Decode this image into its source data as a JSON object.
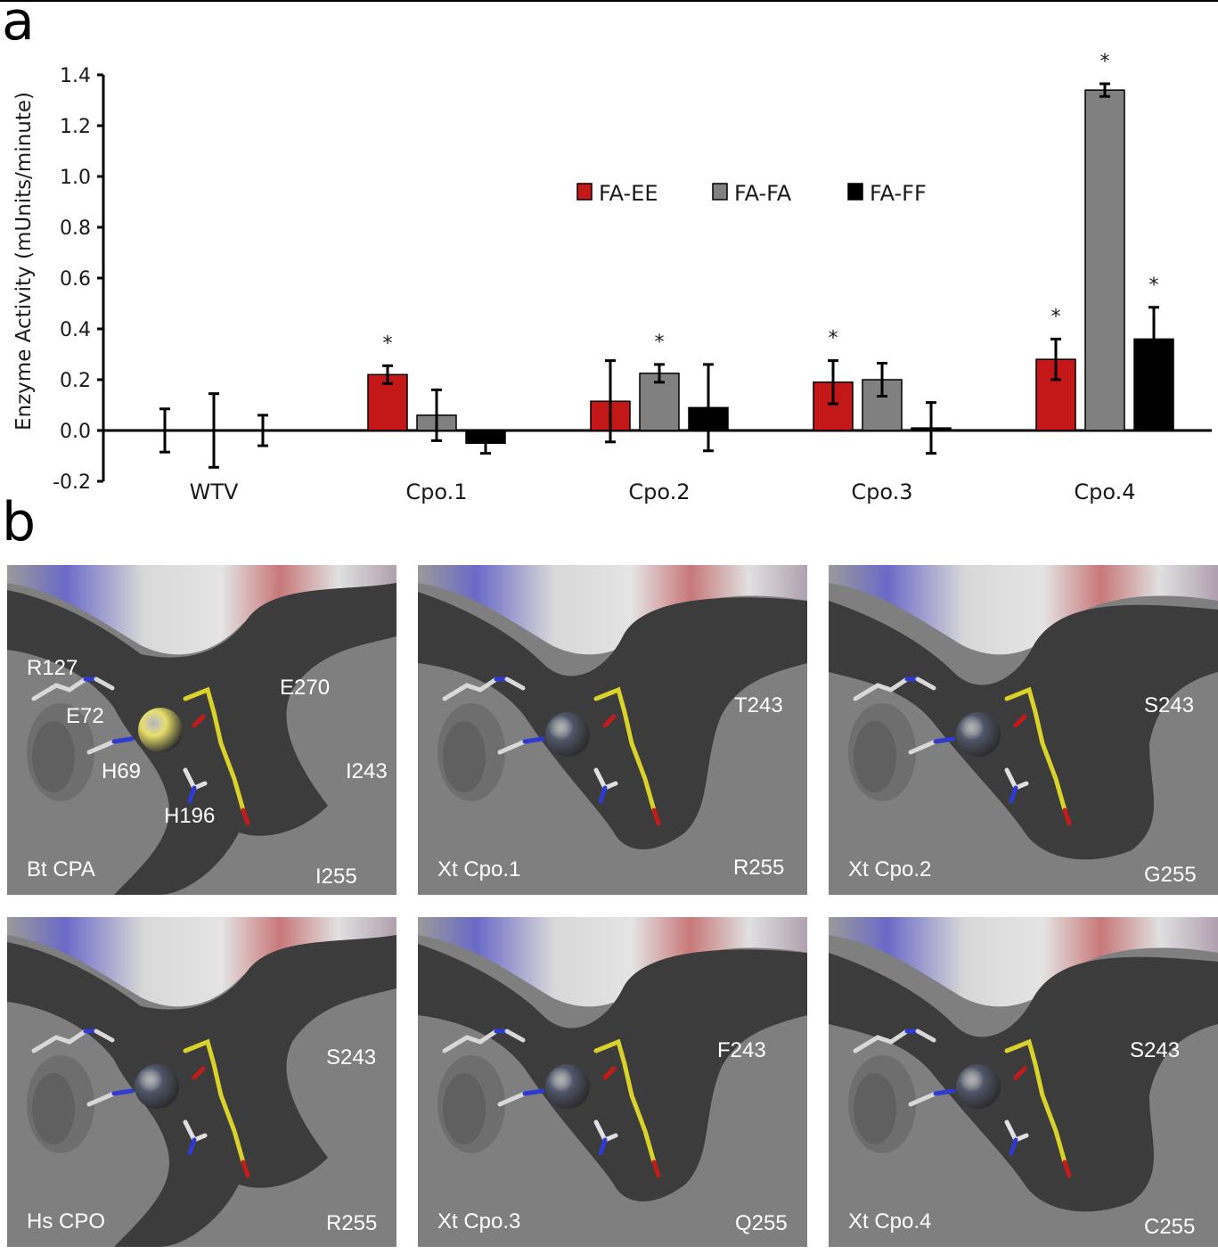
{
  "panel_a_letter": "a",
  "panel_b_letter": "b",
  "chart_data": {
    "type": "bar",
    "ylabel": "Enzyme Activity (mUnits/minute)",
    "xlabel": "",
    "title": "",
    "ylim": [
      -0.2,
      1.4
    ],
    "yticks": [
      "-0.2",
      "0.0",
      "0.2",
      "0.4",
      "0.6",
      "0.8",
      "1.0",
      "1.2",
      "1.4"
    ],
    "categories": [
      "WTV",
      "Cpo.1",
      "Cpo.2",
      "Cpo.3",
      "Cpo.4"
    ],
    "series": [
      {
        "name": "FA-EE",
        "color": "#c41718",
        "values": [
          0.0,
          0.22,
          0.115,
          0.19,
          0.28
        ],
        "errors": [
          0.085,
          0.035,
          0.16,
          0.085,
          0.08
        ],
        "significant": [
          false,
          true,
          false,
          true,
          true
        ]
      },
      {
        "name": "FA-FA",
        "color": "#808080",
        "values": [
          0.0,
          0.06,
          0.225,
          0.2,
          1.34
        ],
        "errors": [
          0.145,
          0.1,
          0.035,
          0.065,
          0.025
        ],
        "significant": [
          false,
          false,
          true,
          false,
          true
        ]
      },
      {
        "name": "FA-FF",
        "color": "#000000",
        "values": [
          0.0,
          -0.05,
          0.09,
          0.01,
          0.36
        ],
        "errors": [
          0.06,
          0.04,
          0.17,
          0.1,
          0.125
        ],
        "significant": [
          false,
          false,
          false,
          false,
          true
        ]
      }
    ],
    "significance_marker": "*",
    "grid": false,
    "legend_position": "top-center"
  },
  "panel_b": {
    "panels": [
      {
        "title": "Bt CPA",
        "labels": [
          "R127",
          "E72",
          "H69",
          "H196",
          "E270",
          "I243",
          "I255"
        ],
        "metal": "yellow"
      },
      {
        "title": "Xt Cpo.1",
        "labels": [
          "T243",
          "R255"
        ],
        "metal": "slate"
      },
      {
        "title": "Xt Cpo.2",
        "labels": [
          "S243",
          "G255"
        ],
        "metal": "slate"
      },
      {
        "title": "Hs CPO",
        "labels": [
          "S243",
          "R255"
        ],
        "metal": "slate"
      },
      {
        "title": "Xt Cpo.3",
        "labels": [
          "F243",
          "Q255"
        ],
        "metal": "slate"
      },
      {
        "title": "Xt Cpo.4",
        "labels": [
          "S243",
          "C255"
        ],
        "metal": "slate"
      }
    ]
  }
}
